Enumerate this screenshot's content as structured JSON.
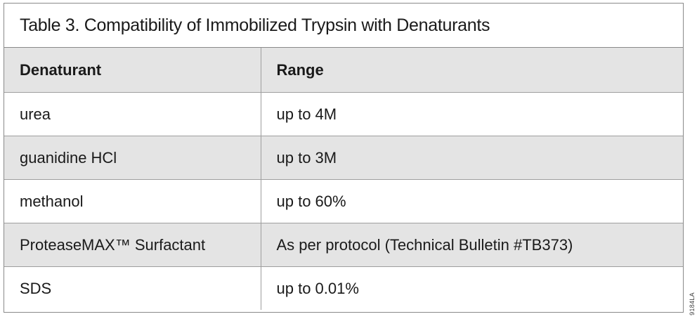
{
  "title": "Table 3. Compatibility of Immobilized Trypsin with Denaturants",
  "table": {
    "columns": [
      {
        "key": "denaturant",
        "label": "Denaturant"
      },
      {
        "key": "range",
        "label": "Range"
      }
    ],
    "rows": [
      {
        "denaturant": "urea",
        "range": "up to 4M"
      },
      {
        "denaturant": "guanidine HCl",
        "range": "up to 3M"
      },
      {
        "denaturant": "methanol",
        "range": "up to 60%"
      },
      {
        "denaturant": "ProteaseMAX™ Surfactant",
        "range": "As per protocol (Technical Bulletin #TB373)"
      },
      {
        "denaturant": "SDS",
        "range": "up to 0.01%"
      }
    ]
  },
  "figure_code": "9184LA",
  "colors": {
    "header_bg": "#e4e4e4",
    "row_alt_bg": "#e4e4e4",
    "frame_border": "#8a8a8a",
    "grid_line": "#9e9e9e",
    "text_color": "#1a1a1a",
    "code_color": "#404040"
  }
}
